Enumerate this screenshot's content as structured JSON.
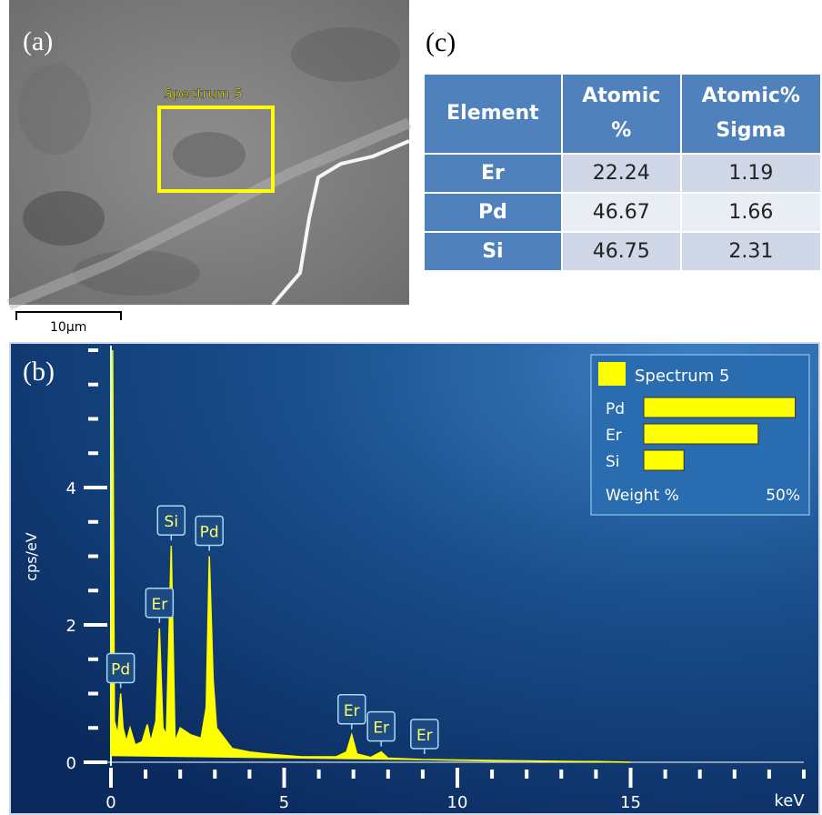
{
  "panel_a": {
    "label": "(a)",
    "roi_label": "Spectrum 5",
    "scale_bar": "10µm"
  },
  "panel_c": {
    "label": "(c)",
    "table": {
      "header": [
        "Element",
        "Atomic %",
        "Atomic% Sigma"
      ],
      "rows": [
        [
          "Er",
          "22.24",
          "1.19"
        ],
        [
          "Pd",
          "46.67",
          "1.66"
        ],
        [
          "Si",
          "46.75",
          "2.31"
        ]
      ]
    }
  },
  "panel_b": {
    "label": "(b)"
  },
  "chart_data": {
    "type": "area",
    "ylabel": "cps/eV",
    "xlabel": "keV",
    "color": "#ffff00",
    "x": [
      0,
      0.05,
      0.1,
      0.2,
      0.28,
      0.35,
      0.45,
      0.55,
      0.7,
      0.9,
      1.05,
      1.15,
      1.3,
      1.4,
      1.5,
      1.6,
      1.74,
      1.85,
      2.0,
      2.3,
      2.6,
      2.75,
      2.84,
      2.95,
      3.05,
      3.2,
      3.5,
      4,
      4.5,
      5,
      5.5,
      6,
      6.5,
      6.8,
      6.95,
      7.1,
      7.5,
      7.8,
      8.0,
      8.5,
      9,
      10,
      11,
      12,
      13,
      14,
      15
    ],
    "values": [
      0.1,
      6,
      0.6,
      0.4,
      1.0,
      0.5,
      0.3,
      0.5,
      0.25,
      0.3,
      0.55,
      0.3,
      0.6,
      1.95,
      0.5,
      0.4,
      3.15,
      0.3,
      0.5,
      0.4,
      0.35,
      0.8,
      3.0,
      1.2,
      0.5,
      0.4,
      0.2,
      0.15,
      0.12,
      0.1,
      0.08,
      0.08,
      0.08,
      0.15,
      0.4,
      0.12,
      0.07,
      0.15,
      0.06,
      0.05,
      0.04,
      0.03,
      0.02,
      0.02,
      0.01,
      0.01,
      0.0
    ],
    "xlim": [
      0,
      20
    ],
    "ylim": [
      0,
      6
    ],
    "xticks": [
      0,
      5,
      10,
      15
    ],
    "yticks": [
      0,
      2,
      4
    ],
    "xminorticks": [
      1,
      2,
      3,
      4,
      6,
      7,
      8,
      9,
      11,
      12,
      13,
      14,
      16,
      17,
      18,
      19,
      20
    ],
    "yminorticks": [
      0.5,
      1,
      1.5,
      2.5,
      3,
      3.5,
      4.5,
      5,
      5.5,
      6
    ],
    "annotations": [
      {
        "text": "Pd",
        "x": 0.28,
        "y": 1.0
      },
      {
        "text": "Er",
        "x": 1.4,
        "y": 1.95
      },
      {
        "text": "Si",
        "x": 1.74,
        "y": 3.15
      },
      {
        "text": "Pd",
        "x": 2.84,
        "y": 3.0
      },
      {
        "text": "Er",
        "x": 6.95,
        "y": 0.4
      },
      {
        "text": "Er",
        "x": 7.8,
        "y": 0.15
      },
      {
        "text": "Er",
        "x": 9.05,
        "y": 0.04
      }
    ],
    "inset": {
      "type": "bar",
      "title": "Spectrum 5",
      "categories": [
        "Pd",
        "Er",
        "Si"
      ],
      "values": [
        49,
        37,
        13
      ],
      "xlabel": "Weight %",
      "xlim": [
        0,
        50
      ],
      "xticks": [
        {
          "value": 50,
          "label": "50%"
        }
      ]
    }
  }
}
